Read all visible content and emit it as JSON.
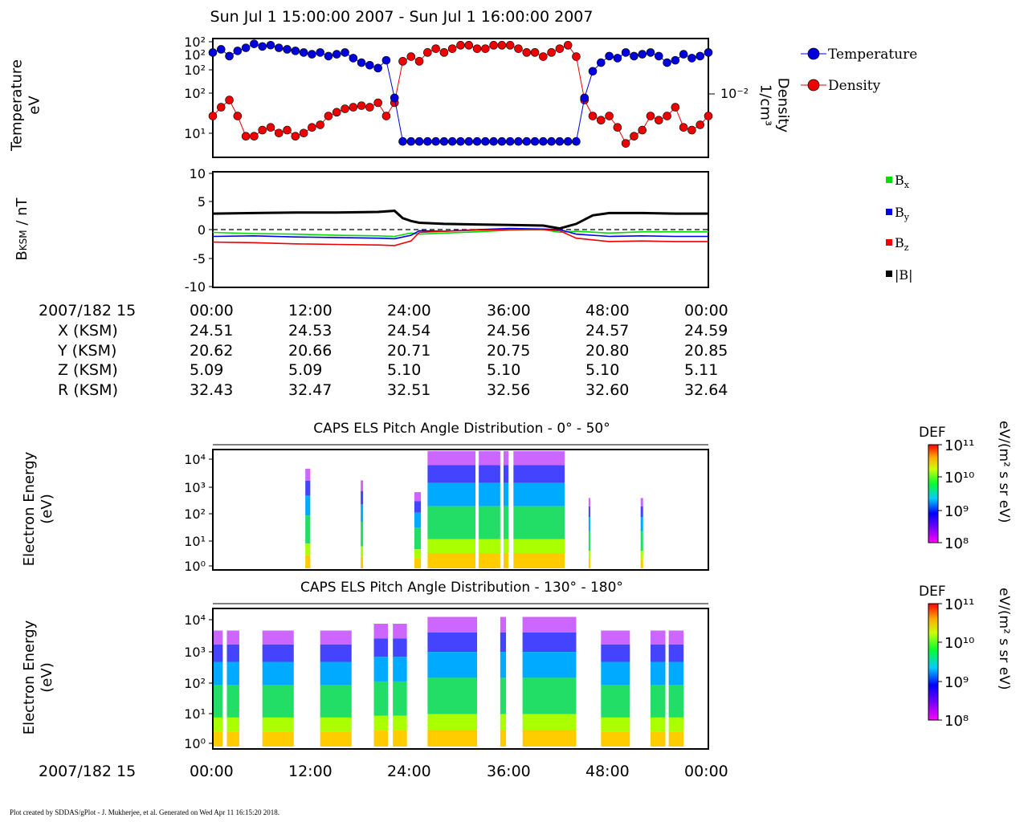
{
  "title": "Sun Jul 1 15:00:00 2007 - Sun Jul 1 16:00:00 2007",
  "footer": "Plot created by SDDAS/gPlot - J. Mukherjee, et al.  Generated on Wed Apr 11 16:15:20 2018.",
  "time_label": "2007/182 15",
  "time_ticks": [
    "00:00",
    "12:00",
    "24:00",
    "36:00",
    "48:00",
    "00:00"
  ],
  "ephemeris": [
    {
      "label": "X (KSM)",
      "values": [
        "24.51",
        "24.53",
        "24.54",
        "24.56",
        "24.57",
        "24.59"
      ]
    },
    {
      "label": "Y (KSM)",
      "values": [
        "20.62",
        "20.66",
        "20.71",
        "20.75",
        "20.80",
        "20.85"
      ]
    },
    {
      "label": "Z (KSM)",
      "values": [
        "5.09",
        "5.09",
        "5.10",
        "5.10",
        "5.10",
        "5.11"
      ]
    },
    {
      "label": "R (KSM)",
      "values": [
        "32.43",
        "32.47",
        "32.51",
        "32.56",
        "32.60",
        "32.64"
      ]
    }
  ],
  "colors": {
    "temperature": "#0000dd",
    "density": "#ee0000",
    "bx": "#00dd00",
    "by": "#0000ee",
    "bz": "#ee0000",
    "bmag": "#000000"
  },
  "panel1": {
    "ylabel_line1": "Temperature",
    "ylabel_line2": "eV",
    "y_ticks": [
      "10²",
      "10²",
      "10²",
      "10²",
      "10¹"
    ],
    "right_label_line1": "Density",
    "right_label_line2": "1/cm³",
    "right_tick": "10⁻²",
    "legend": [
      "Temperature",
      "Density"
    ]
  },
  "panel2": {
    "ylabel": "B",
    "ylabel_sub": "KSM",
    "ylabel_unit": " / nT",
    "y_ticks": [
      "10",
      "5",
      "0",
      "-5",
      "-10"
    ],
    "legend": [
      {
        "base": "B",
        "sub": "x"
      },
      {
        "base": "B",
        "sub": "y"
      },
      {
        "base": "B",
        "sub": "z"
      },
      {
        "base": "|B|",
        "sub": ""
      }
    ]
  },
  "panel3": {
    "title": "CAPS ELS Pitch Angle Distribution - 0° - 50°",
    "ylabel_line1": "Electron Energy",
    "ylabel_line2": "(eV)",
    "y_ticks": [
      "10⁴",
      "10³",
      "10²",
      "10¹",
      "10⁰"
    ],
    "cbar_title": "DEF",
    "cbar_ticks": [
      "10¹¹",
      "10¹⁰",
      "10⁹",
      "10⁸"
    ],
    "cbar_unit": "eV/(m² s sr eV)"
  },
  "panel4": {
    "title": "CAPS ELS Pitch Angle Distribution - 130° - 180°",
    "ylabel_line1": "Electron Energy",
    "ylabel_line2": "(eV)",
    "y_ticks": [
      "10⁴",
      "10³",
      "10²",
      "10¹",
      "10⁰"
    ],
    "cbar_title": "DEF",
    "cbar_ticks": [
      "10¹¹",
      "10¹⁰",
      "10⁹",
      "10⁸"
    ],
    "cbar_unit": "eV/(m² s sr eV)"
  },
  "chart_data": [
    {
      "type": "scatter",
      "title": "",
      "xlabel": "2007/182 15",
      "ylabel": "Temperature eV",
      "x_unit": "minutes",
      "xlim": [
        0,
        60
      ],
      "ylim_log_decades": [
        0,
        2
      ],
      "series": [
        {
          "name": "Temperature",
          "x": [
            0,
            1,
            2,
            3,
            4,
            5,
            6,
            7,
            8,
            9,
            10,
            11,
            12,
            13,
            14,
            15,
            16,
            17,
            18,
            19,
            20,
            21,
            22,
            23,
            24,
            25,
            26,
            27,
            28,
            29,
            30,
            31,
            32,
            33,
            34,
            35,
            36,
            37,
            38,
            39,
            40,
            41,
            42,
            43,
            44,
            45,
            46,
            47,
            48,
            49,
            50,
            51,
            52,
            53,
            54,
            55,
            56,
            57,
            58,
            59,
            60
          ],
          "y": [
            80,
            90,
            70,
            85,
            95,
            110,
            100,
            105,
            95,
            90,
            85,
            80,
            75,
            80,
            70,
            75,
            80,
            65,
            55,
            50,
            45,
            60,
            15,
            3,
            3,
            3,
            3,
            3,
            3,
            3,
            3,
            3,
            3,
            3,
            3,
            3,
            3,
            3,
            3,
            3,
            3,
            3,
            3,
            3,
            3,
            15,
            40,
            55,
            70,
            65,
            80,
            70,
            75,
            80,
            70,
            55,
            60,
            75,
            65,
            70,
            80
          ]
        },
        {
          "name": "Density",
          "x": [
            0,
            1,
            2,
            3,
            4,
            5,
            6,
            7,
            8,
            9,
            10,
            11,
            12,
            13,
            14,
            15,
            16,
            17,
            18,
            19,
            20,
            21,
            22,
            23,
            24,
            25,
            26,
            27,
            28,
            29,
            30,
            31,
            32,
            33,
            34,
            35,
            36,
            37,
            38,
            39,
            40,
            41,
            42,
            43,
            44,
            45,
            46,
            47,
            48,
            49,
            50,
            51,
            52,
            53,
            54,
            55,
            56,
            57,
            58,
            59,
            60
          ],
          "y": [
            0.02,
            0.025,
            0.03,
            0.02,
            0.012,
            0.012,
            0.014,
            0.015,
            0.013,
            0.014,
            0.012,
            0.013,
            0.015,
            0.016,
            0.02,
            0.022,
            0.024,
            0.025,
            0.026,
            0.025,
            0.028,
            0.02,
            0.028,
            0.08,
            0.09,
            0.08,
            0.1,
            0.11,
            0.1,
            0.11,
            0.12,
            0.12,
            0.11,
            0.11,
            0.12,
            0.12,
            0.12,
            0.11,
            0.1,
            0.1,
            0.09,
            0.1,
            0.11,
            0.12,
            0.09,
            0.03,
            0.02,
            0.018,
            0.02,
            0.015,
            0.01,
            0.012,
            0.014,
            0.02,
            0.018,
            0.02,
            0.025,
            0.015,
            0.014,
            0.016,
            0.02
          ]
        }
      ]
    },
    {
      "type": "line",
      "title": "",
      "xlabel": "2007/182 15",
      "ylabel": "BKSM / nT",
      "x_unit": "minutes",
      "xlim": [
        0,
        60
      ],
      "ylim": [
        -10,
        10
      ],
      "series": [
        {
          "name": "Bx",
          "x": [
            0,
            5,
            10,
            15,
            20,
            22,
            24,
            25,
            28,
            32,
            36,
            40,
            42,
            44,
            48,
            52,
            56,
            60
          ],
          "y": [
            -0.5,
            -0.7,
            -0.8,
            -1.0,
            -1.1,
            -1.2,
            -0.6,
            -0.8,
            -0.6,
            -0.4,
            -0.1,
            0.0,
            -0.5,
            -0.3,
            -0.6,
            -0.4,
            -0.4,
            -0.4
          ]
        },
        {
          "name": "By",
          "x": [
            0,
            5,
            10,
            15,
            20,
            22,
            24,
            25,
            28,
            32,
            36,
            40,
            42,
            44,
            48,
            52,
            56,
            60
          ],
          "y": [
            -1.2,
            -1.1,
            -1.3,
            -1.4,
            -1.5,
            -1.6,
            -1.0,
            -0.2,
            -0.3,
            0.0,
            0.2,
            0.1,
            0.0,
            -0.8,
            -1.2,
            -1.1,
            -1.2,
            -1.2
          ]
        },
        {
          "name": "Bz",
          "x": [
            0,
            5,
            10,
            15,
            20,
            22,
            24,
            25,
            28,
            32,
            36,
            40,
            42,
            44,
            48,
            52,
            56,
            60
          ],
          "y": [
            -2.2,
            -2.3,
            -2.5,
            -2.6,
            -2.7,
            -2.8,
            -2.0,
            -0.5,
            -0.3,
            -0.1,
            0.0,
            0.0,
            -0.2,
            -1.5,
            -2.1,
            -2.0,
            -2.1,
            -2.1
          ]
        },
        {
          "name": "|B|",
          "x": [
            0,
            5,
            10,
            15,
            20,
            22,
            23,
            24,
            25,
            28,
            32,
            36,
            40,
            42,
            44,
            46,
            48,
            52,
            56,
            60
          ],
          "y": [
            2.8,
            2.9,
            3.0,
            3.0,
            3.1,
            3.3,
            2.0,
            1.5,
            1.2,
            1.0,
            0.9,
            0.8,
            0.7,
            0.2,
            1.0,
            2.5,
            2.9,
            2.9,
            2.8,
            2.8
          ]
        }
      ]
    }
  ]
}
